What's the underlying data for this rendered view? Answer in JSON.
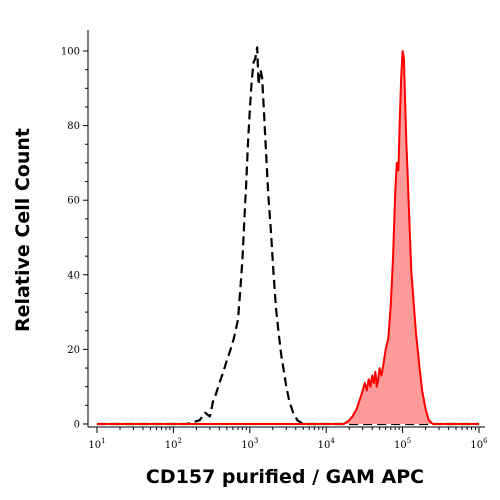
{
  "chart_data": {
    "type": "area",
    "title": "",
    "xlabel": "CD157 purified / GAM APC",
    "ylabel": "Relative Cell Count",
    "x_scale": "log",
    "xlim": [
      10,
      1000000
    ],
    "ylim": [
      0,
      105
    ],
    "x_ticks": [
      {
        "base": "10",
        "exp": "1",
        "value": 10
      },
      {
        "base": "10",
        "exp": "2",
        "value": 100
      },
      {
        "base": "10",
        "exp": "3",
        "value": 1000
      },
      {
        "base": "10",
        "exp": "4",
        "value": 10000
      },
      {
        "base": "10",
        "exp": "5",
        "value": 100000
      },
      {
        "base": "10",
        "exp": "6",
        "value": 1000000
      }
    ],
    "y_ticks": [
      "0",
      "20",
      "40",
      "60",
      "80",
      "100"
    ],
    "grid": false,
    "legend": "none",
    "series": [
      {
        "style": "dashed-outline",
        "color": "#000000",
        "x": [
          10,
          100,
          150,
          220,
          260,
          300,
          330,
          360,
          400,
          450,
          500,
          560,
          620,
          700,
          750,
          800,
          850,
          900,
          950,
          1000,
          1060,
          1120,
          1180,
          1250,
          1300,
          1380,
          1450,
          1550,
          1650,
          1750,
          1900,
          2050,
          2200,
          2400,
          2600,
          2800,
          3000,
          3300,
          3700,
          4200,
          5000,
          10000,
          100000,
          1000000
        ],
        "y": [
          0,
          0,
          0,
          1,
          3,
          2,
          6,
          8,
          11,
          14,
          17,
          20,
          23,
          28,
          36,
          44,
          55,
          65,
          76,
          84,
          92,
          97,
          98,
          101,
          91,
          95,
          93,
          82,
          71,
          61,
          51,
          40,
          31,
          24,
          18,
          14,
          10,
          6,
          3,
          1,
          0,
          0,
          0,
          0
        ]
      },
      {
        "style": "filled",
        "color": "#ff0000",
        "fill": "#ff9a9a",
        "x": [
          10,
          1000,
          10000,
          17000,
          20000,
          22000,
          25000,
          28000,
          30000,
          32000,
          34000,
          36000,
          38000,
          40000,
          42000,
          44000,
          46000,
          48000,
          50000,
          53000,
          56000,
          60000,
          65000,
          70000,
          75000,
          80000,
          84000,
          88000,
          92000,
          96000,
          100000,
          104000,
          108000,
          112000,
          116000,
          120000,
          125000,
          130000,
          140000,
          150000,
          165000,
          180000,
          200000,
          220000,
          250000,
          1000000
        ],
        "y": [
          0,
          0,
          0,
          0,
          1,
          2,
          4,
          7,
          9,
          11,
          9,
          12,
          10,
          13,
          11,
          14,
          10,
          12,
          15,
          13,
          16,
          20,
          23,
          32,
          45,
          62,
          70,
          68,
          82,
          93,
          100,
          98,
          86,
          75,
          68,
          60,
          50,
          41,
          32,
          24,
          16,
          9,
          4,
          1,
          0,
          0
        ]
      }
    ]
  }
}
